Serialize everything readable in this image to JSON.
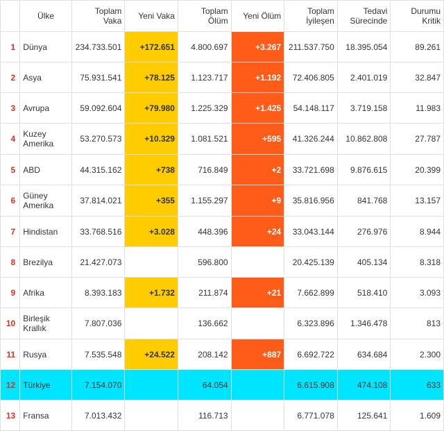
{
  "columns": [
    "Ülke",
    "Toplam Vaka",
    "Yeni Vaka",
    "Toplam Ölüm",
    "Yeni Ölüm",
    "Toplam İyileşen",
    "Tedavi Sürecinde",
    "Durumu Kritik"
  ],
  "rows": [
    {
      "rank": "1",
      "country": "Dünya",
      "total_cases": "234.733.501",
      "new_cases": "+172.651",
      "total_deaths": "4.800.697",
      "new_deaths": "+3.267",
      "recovered": "211.537.750",
      "active": "18.395.054",
      "critical": "89.261",
      "highlight": false
    },
    {
      "rank": "2",
      "country": "Asya",
      "total_cases": "75.931.541",
      "new_cases": "+78.125",
      "total_deaths": "1.123.717",
      "new_deaths": "+1.192",
      "recovered": "72.406.805",
      "active": "2.401.019",
      "critical": "32.847",
      "highlight": false
    },
    {
      "rank": "3",
      "country": "Avrupa",
      "total_cases": "59.092.604",
      "new_cases": "+79.980",
      "total_deaths": "1.225.329",
      "new_deaths": "+1.425",
      "recovered": "54.148.117",
      "active": "3.719.158",
      "critical": "11.983",
      "highlight": false
    },
    {
      "rank": "4",
      "country": "Kuzey Amerika",
      "total_cases": "53.270.573",
      "new_cases": "+10.329",
      "total_deaths": "1.081.521",
      "new_deaths": "+595",
      "recovered": "41.326.244",
      "active": "10.862.808",
      "critical": "27.787",
      "highlight": false
    },
    {
      "rank": "5",
      "country": "ABD",
      "total_cases": "44.315.162",
      "new_cases": "+738",
      "total_deaths": "716.849",
      "new_deaths": "+2",
      "recovered": "33.721.698",
      "active": "9.876.615",
      "critical": "20.399",
      "highlight": false
    },
    {
      "rank": "6",
      "country": "Güney Amerika",
      "total_cases": "37.814.021",
      "new_cases": "+355",
      "total_deaths": "1.155.297",
      "new_deaths": "+9",
      "recovered": "35.816.956",
      "active": "841.768",
      "critical": "13.157",
      "highlight": false
    },
    {
      "rank": "7",
      "country": "Hindistan",
      "total_cases": "33.768.516",
      "new_cases": "+3.028",
      "total_deaths": "448.396",
      "new_deaths": "+24",
      "recovered": "33.043.144",
      "active": "276.976",
      "critical": "8.944",
      "highlight": false
    },
    {
      "rank": "8",
      "country": "Brezilya",
      "total_cases": "21.427.073",
      "new_cases": "",
      "total_deaths": "596.800",
      "new_deaths": "",
      "recovered": "20.425.139",
      "active": "405.134",
      "critical": "8.318",
      "highlight": false
    },
    {
      "rank": "9",
      "country": "Afrika",
      "total_cases": "8.393.183",
      "new_cases": "+1.732",
      "total_deaths": "211.874",
      "new_deaths": "+21",
      "recovered": "7.662.899",
      "active": "518.410",
      "critical": "3.093",
      "highlight": false
    },
    {
      "rank": "10",
      "country": "Birleşik Krallık",
      "total_cases": "7.807.036",
      "new_cases": "",
      "total_deaths": "136.662",
      "new_deaths": "",
      "recovered": "6.323.896",
      "active": "1.346.478",
      "critical": "813",
      "highlight": false
    },
    {
      "rank": "11",
      "country": "Rusya",
      "total_cases": "7.535.548",
      "new_cases": "+24.522",
      "total_deaths": "208.142",
      "new_deaths": "+887",
      "recovered": "6.692.722",
      "active": "634.684",
      "critical": "2.300",
      "highlight": false
    },
    {
      "rank": "12",
      "country": "Türkiye",
      "total_cases": "7.154.070",
      "new_cases": "",
      "total_deaths": "64.054",
      "new_deaths": "",
      "recovered": "6.615.908",
      "active": "474.108",
      "critical": "633",
      "highlight": true
    },
    {
      "rank": "13",
      "country": "Fransa",
      "total_cases": "7.013.432",
      "new_cases": "",
      "total_deaths": "116.713",
      "new_deaths": "",
      "recovered": "6.771.078",
      "active": "125.641",
      "critical": "1.609",
      "highlight": false
    }
  ],
  "colors": {
    "rank": "#e03020",
    "new_cases_bg": "#ffcc00",
    "new_deaths_bg": "#ff5c1a",
    "highlight_bg": "#00e5ff",
    "border": "#e0e0e0"
  }
}
